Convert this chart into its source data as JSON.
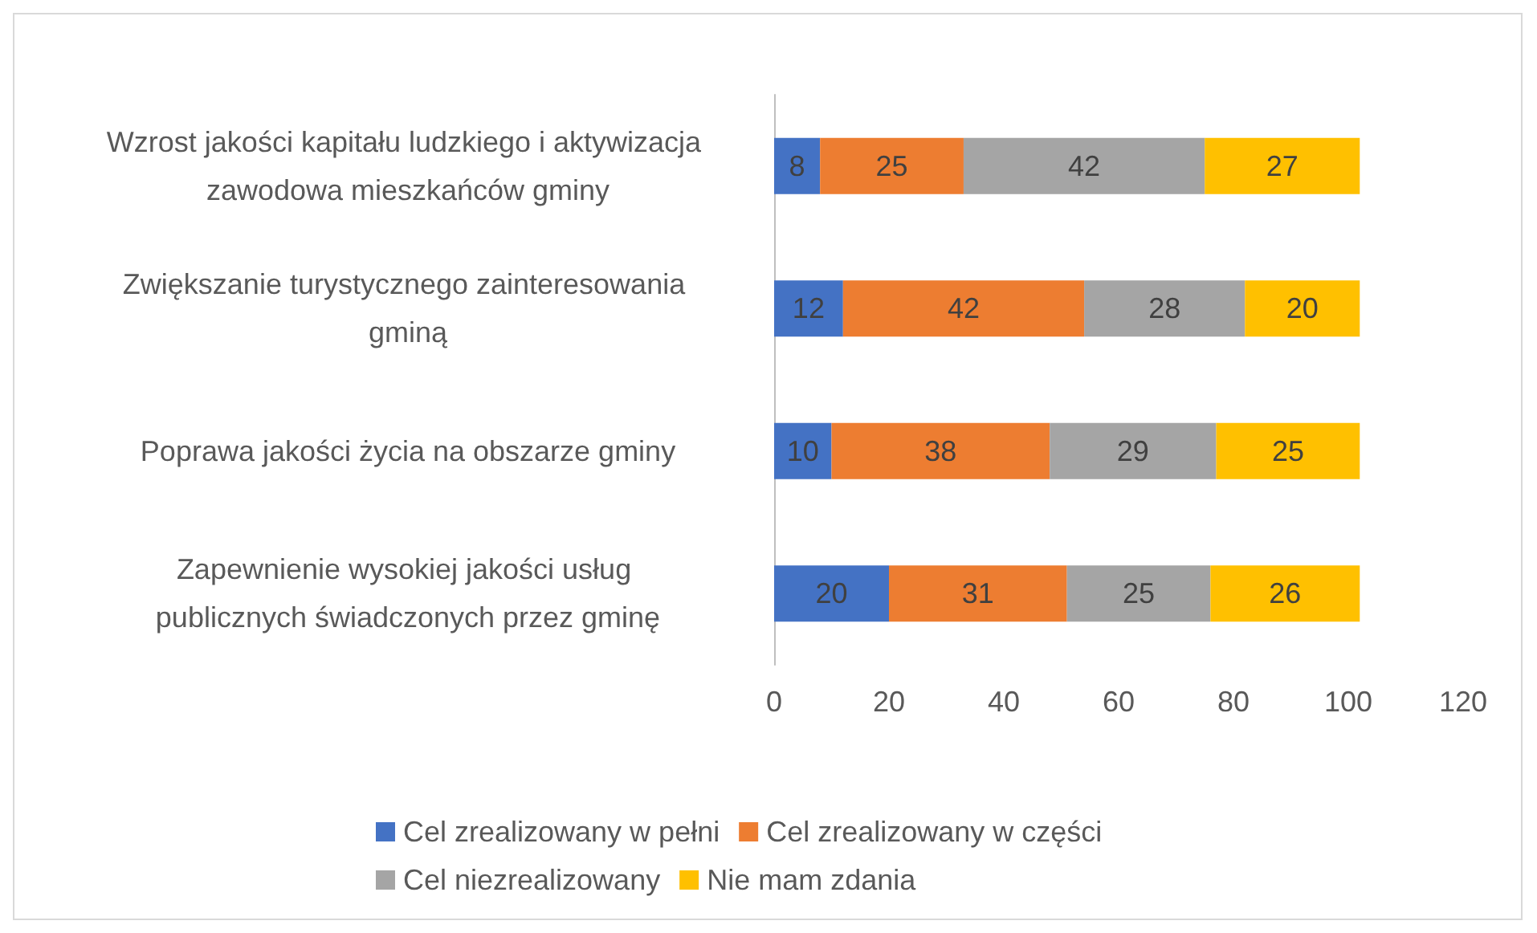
{
  "chart_data": {
    "type": "bar",
    "orientation": "horizontal",
    "stacked": true,
    "data_labels": true,
    "legend": "bottom",
    "grid": false,
    "categories": [
      "Wzrost jakości kapitału ludzkiego i aktywizacja zawodowa mieszkańców gminy",
      "Zwiększanie turystycznego zainteresowania gminą",
      "Poprawa jakości życia na obszarze gminy",
      "Zapewnienie wysokiej jakości usług publicznych świadczonych przez gminę"
    ],
    "xlim": [
      0,
      120
    ],
    "xticks": [
      0,
      20,
      40,
      60,
      80,
      100,
      120
    ],
    "series": [
      {
        "name": "Cel zrealizowany w pełni",
        "color": "#4472c4",
        "values": [
          8,
          12,
          10,
          20
        ]
      },
      {
        "name": "Cel zrealizowany w części",
        "color": "#ed7d31",
        "values": [
          25,
          42,
          38,
          31
        ]
      },
      {
        "name": "Cel niezrealizowany",
        "color": "#a5a5a5",
        "values": [
          42,
          28,
          29,
          25
        ]
      },
      {
        "name": "Nie mam zdania",
        "color": "#ffc000",
        "values": [
          27,
          20,
          25,
          26
        ]
      }
    ]
  }
}
